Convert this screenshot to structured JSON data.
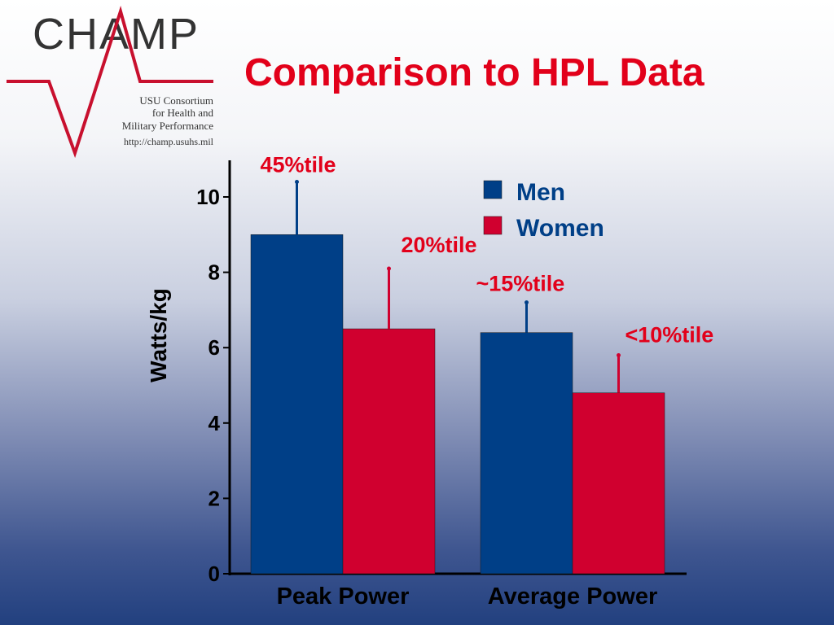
{
  "slide": {
    "title": "Comparison to HPL Data"
  },
  "logo": {
    "wordmark": "CHAMP",
    "line1": "USU Consortium",
    "line2": "for Health and",
    "line3": "Military Performance",
    "url": "http://champ.usuhs.mil",
    "color_dark": "#333333",
    "color_red": "#c8102e"
  },
  "chart_data": {
    "type": "bar",
    "categories": [
      "Peak Power",
      "Average Power"
    ],
    "series": [
      {
        "name": "Men",
        "values": [
          9.0,
          6.4
        ],
        "error_upper": [
          10.4,
          7.2
        ],
        "color": "#003f87"
      },
      {
        "name": "Women",
        "values": [
          6.5,
          4.8
        ],
        "error_upper": [
          8.1,
          5.8
        ],
        "color": "#d0002f"
      }
    ],
    "annotations": [
      "45%tile",
      "20%tile",
      "~15%tile",
      "<10%tile"
    ],
    "annotation_color": "#e2001a",
    "xlabel": "",
    "ylabel": "Watts/kg",
    "ylim": [
      0,
      11
    ],
    "yticks": [
      0,
      2,
      4,
      6,
      8,
      10
    ],
    "legend_position": "top-right",
    "grid": false
  }
}
